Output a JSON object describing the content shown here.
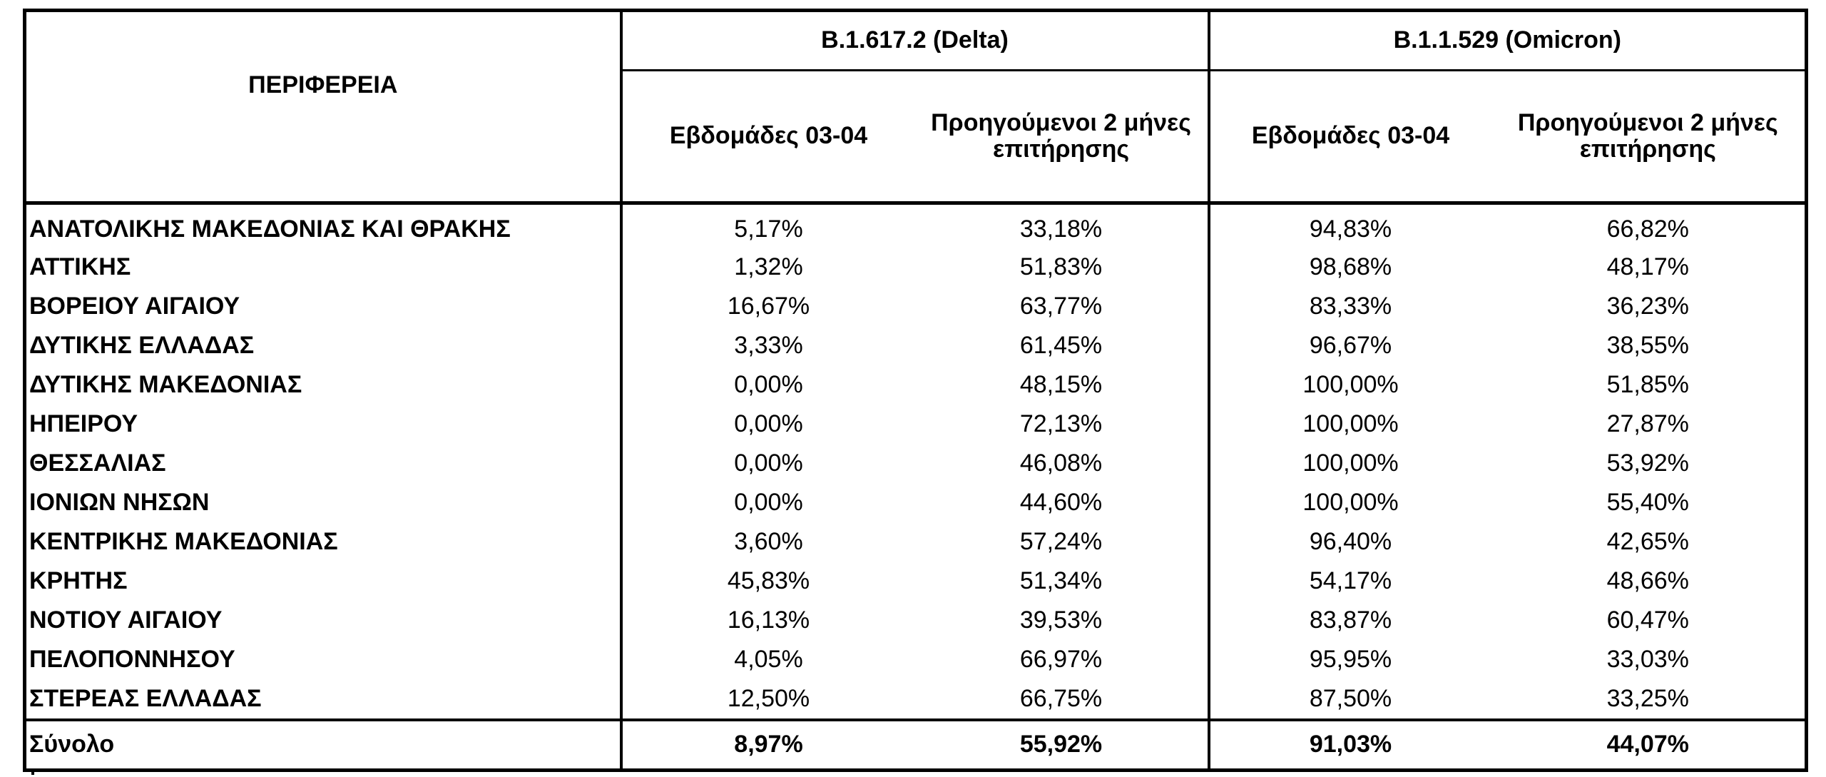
{
  "table": {
    "region_header": "ΠΕΡΙΦΕΡΕΙΑ",
    "groups": [
      {
        "label": "B.1.617.2 (Delta)",
        "subheaders": [
          "Εβδομάδες 03-04",
          "Προηγούμενοι 2 μήνες επιτήρησης"
        ]
      },
      {
        "label": "B.1.1.529 (Omicron)",
        "subheaders": [
          "Εβδομάδες 03-04",
          "Προηγούμενοι 2 μήνες επιτήρησης"
        ]
      }
    ],
    "rows": [
      {
        "region": "ΑΝΑΤΟΛΙΚΗΣ ΜΑΚΕΔΟΝΙΑΣ ΚΑΙ ΘΡΑΚΗΣ",
        "values": [
          "5,17%",
          "33,18%",
          "94,83%",
          "66,82%"
        ]
      },
      {
        "region": "ΑΤΤΙΚΗΣ",
        "values": [
          "1,32%",
          "51,83%",
          "98,68%",
          "48,17%"
        ]
      },
      {
        "region": "ΒΟΡΕΙΟΥ ΑΙΓΑΙΟΥ",
        "values": [
          "16,67%",
          "63,77%",
          "83,33%",
          "36,23%"
        ]
      },
      {
        "region": "ΔΥΤΙΚΗΣ ΕΛΛΑΔΑΣ",
        "values": [
          "3,33%",
          "61,45%",
          "96,67%",
          "38,55%"
        ]
      },
      {
        "region": "ΔΥΤΙΚΗΣ ΜΑΚΕΔΟΝΙΑΣ",
        "values": [
          "0,00%",
          "48,15%",
          "100,00%",
          "51,85%"
        ]
      },
      {
        "region": "ΗΠΕΙΡΟΥ",
        "values": [
          "0,00%",
          "72,13%",
          "100,00%",
          "27,87%"
        ]
      },
      {
        "region": "ΘΕΣΣΑΛΙΑΣ",
        "values": [
          "0,00%",
          "46,08%",
          "100,00%",
          "53,92%"
        ]
      },
      {
        "region": "ΙΟΝΙΩΝ ΝΗΣΩΝ",
        "values": [
          "0,00%",
          "44,60%",
          "100,00%",
          "55,40%"
        ]
      },
      {
        "region": "ΚΕΝΤΡΙΚΗΣ ΜΑΚΕΔΟΝΙΑΣ",
        "values": [
          "3,60%",
          "57,24%",
          "96,40%",
          "42,65%"
        ]
      },
      {
        "region": "ΚΡΗΤΗΣ",
        "values": [
          "45,83%",
          "51,34%",
          "54,17%",
          "48,66%"
        ]
      },
      {
        "region": "ΝΟΤΙΟΥ ΑΙΓΑΙΟΥ",
        "values": [
          "16,13%",
          "39,53%",
          "83,87%",
          "60,47%"
        ]
      },
      {
        "region": "ΠΕΛΟΠΟΝΝΗΣΟΥ",
        "values": [
          "4,05%",
          "66,97%",
          "95,95%",
          "33,03%"
        ]
      },
      {
        "region": "ΣΤΕΡΕΑΣ ΕΛΛΑΔΑΣ",
        "values": [
          "12,50%",
          "66,75%",
          "87,50%",
          "33,25%"
        ]
      }
    ],
    "total": {
      "label": "Σύνολο",
      "values": [
        "8,97%",
        "55,92%",
        "91,03%",
        "44,07%"
      ]
    }
  }
}
